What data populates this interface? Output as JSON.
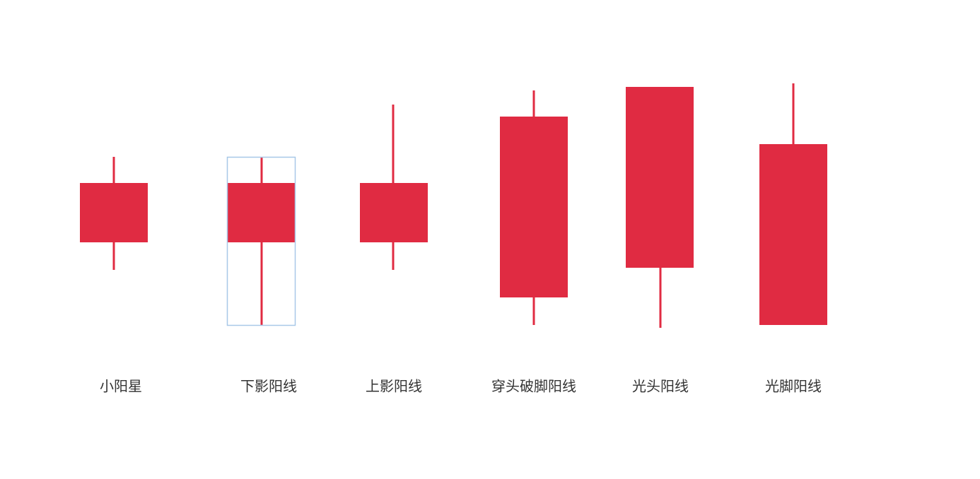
{
  "labels": [
    "小阳星",
    "下影阳线",
    "上影阳线",
    "穿头破脚阳线",
    "光头阳线",
    "光脚阳线"
  ]
}
